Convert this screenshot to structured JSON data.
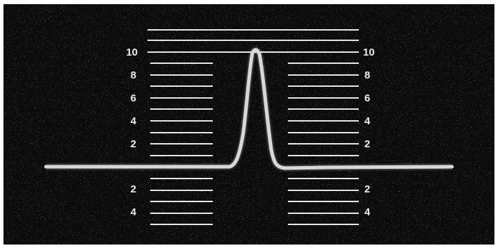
{
  "scale": {
    "upper_left_labels": [
      "10",
      "8",
      "6",
      "4",
      "2"
    ],
    "upper_right_labels": [
      "10",
      "8",
      "6",
      "4",
      "2"
    ],
    "lower_left_labels": [
      "2",
      "4"
    ],
    "lower_right_labels": [
      "2",
      "4"
    ]
  },
  "colors": {
    "background": "#0b0b0b",
    "border": "#ffffff",
    "lines": "#e8e8e8",
    "trace": "#d8d8d8"
  },
  "trace": {
    "peak_value": 10,
    "baseline_value": 0
  }
}
